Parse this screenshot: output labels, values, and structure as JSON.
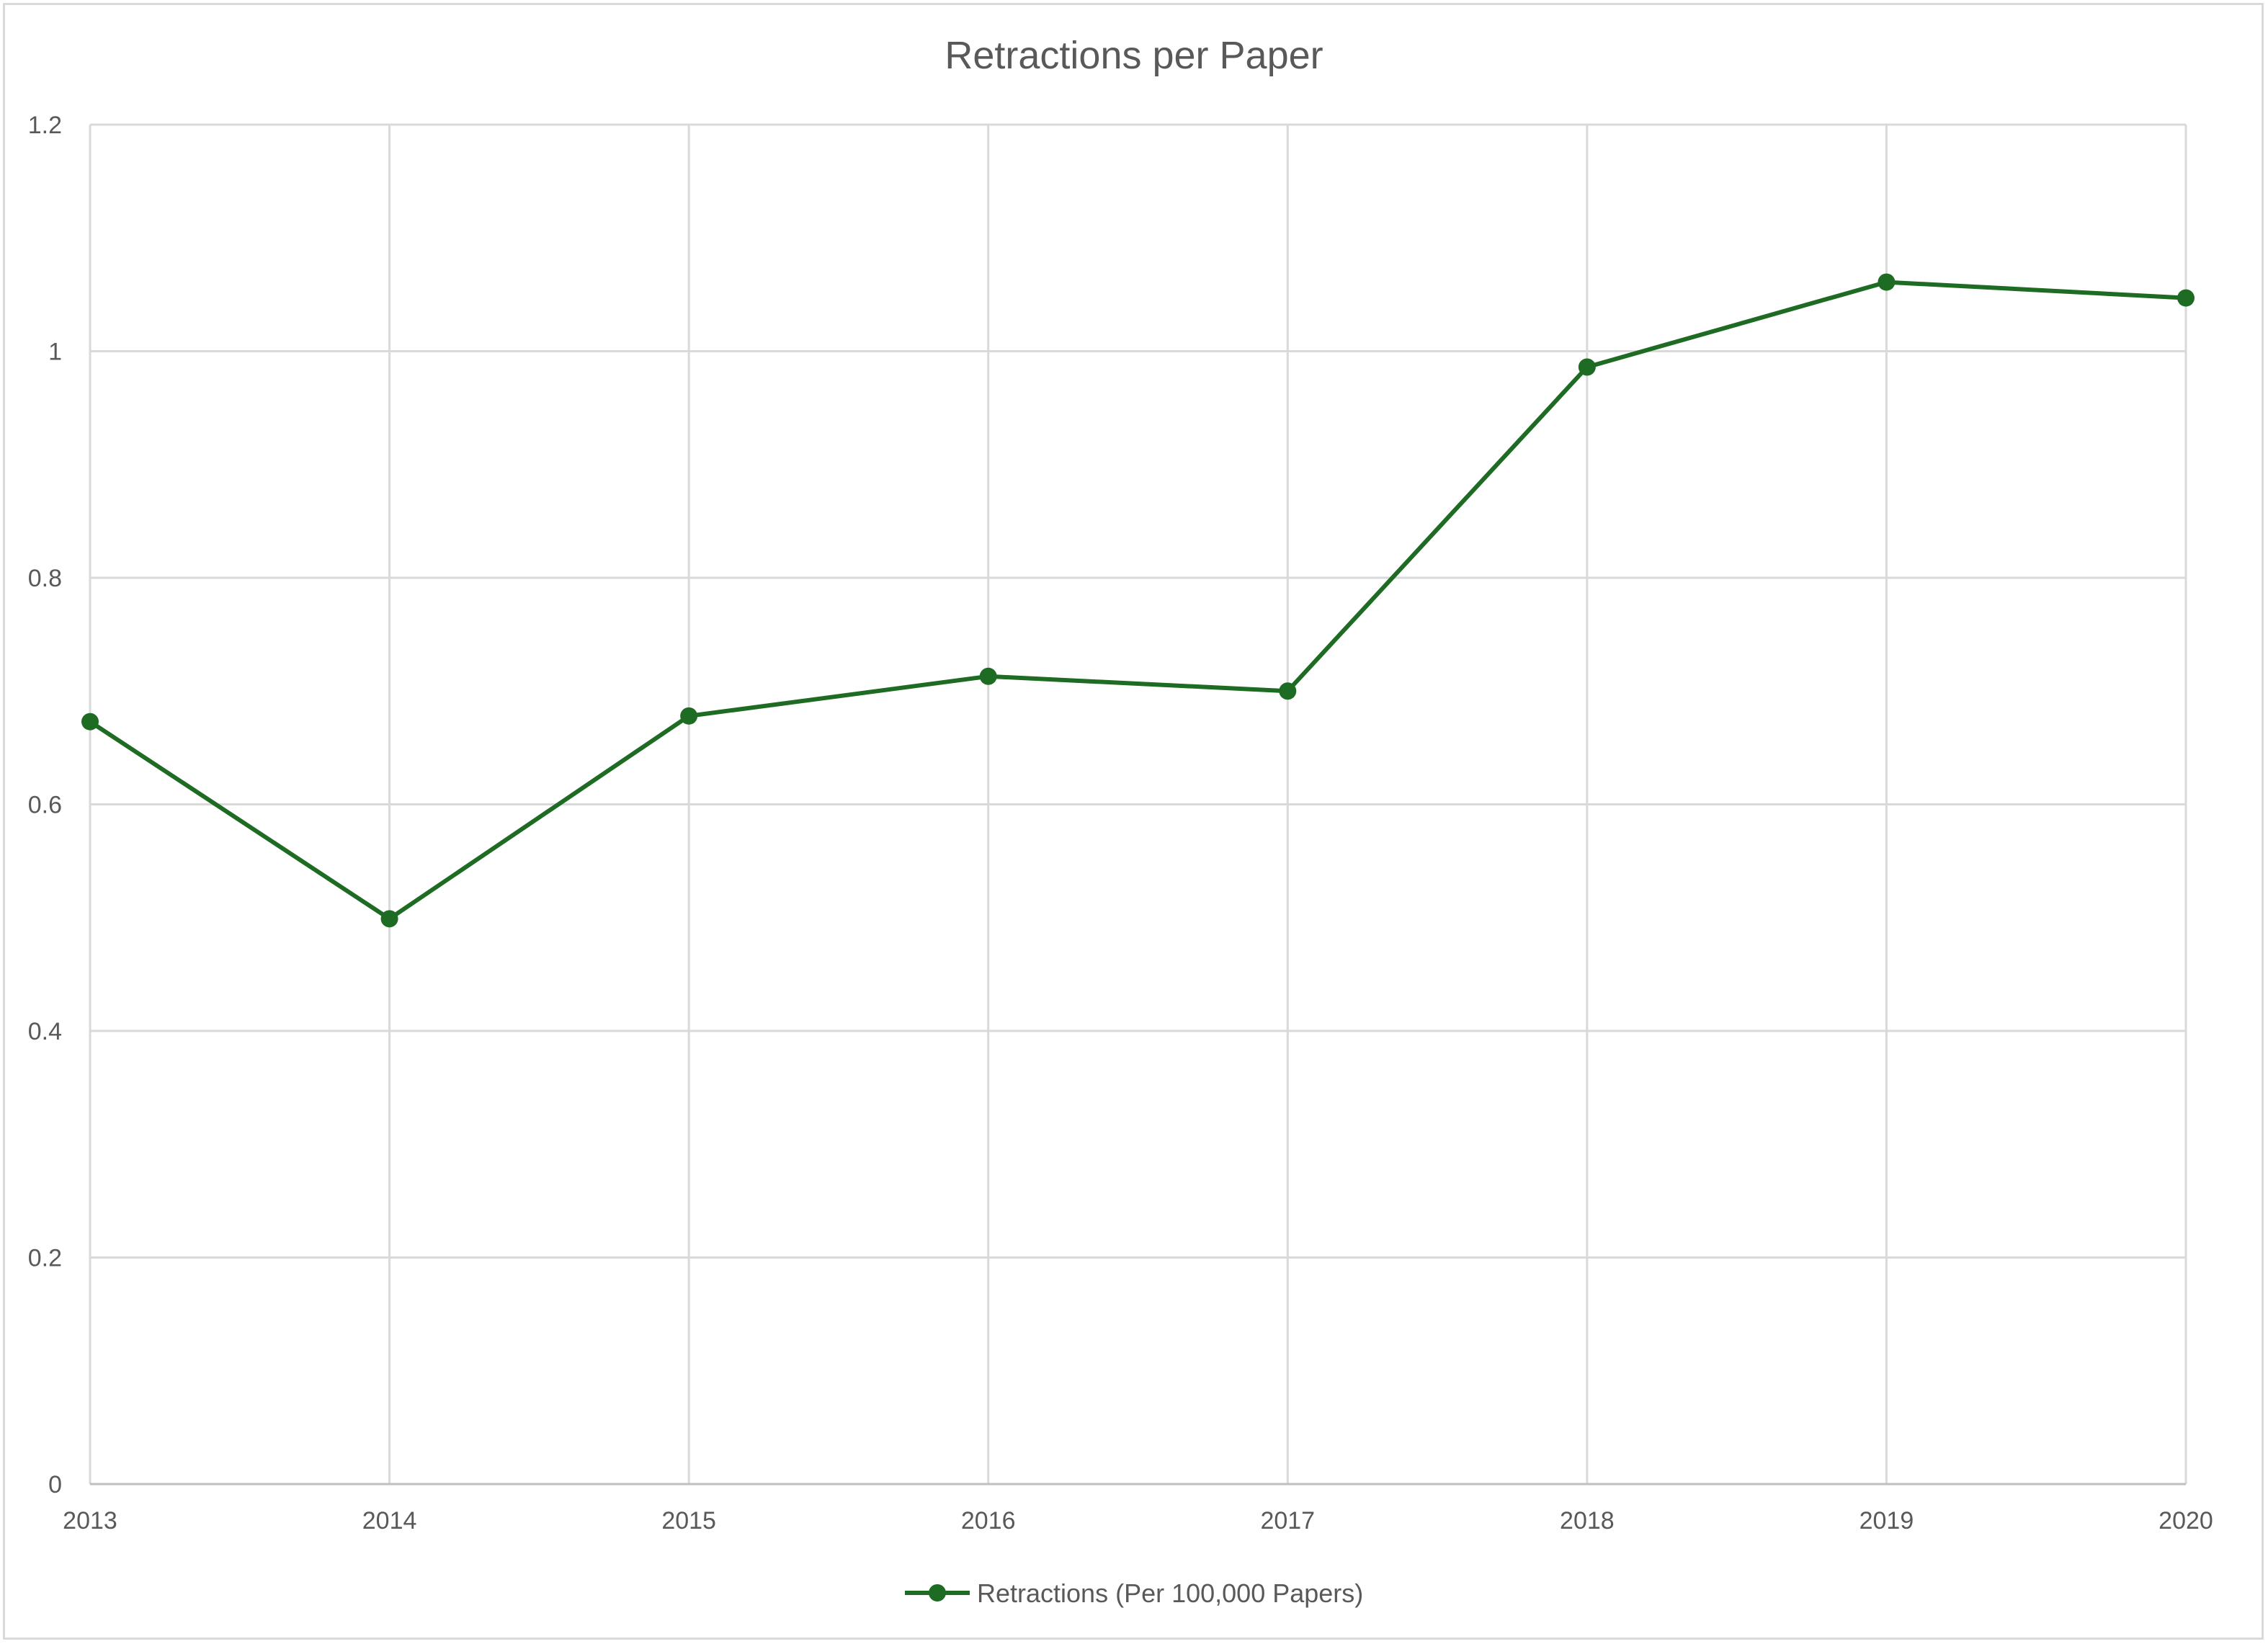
{
  "chart_data": {
    "type": "line",
    "title": "Retractions per Paper",
    "xlabel": "",
    "ylabel": "",
    "categories": [
      "2013",
      "2014",
      "2015",
      "2016",
      "2017",
      "2018",
      "2019",
      "2020"
    ],
    "series": [
      {
        "name": "Retractions (Per 100,000 Papers)",
        "values": [
          0.673,
          0.499,
          0.678,
          0.713,
          0.7,
          0.986,
          1.061,
          1.047
        ],
        "color": "#1e6b23"
      }
    ],
    "ylim": [
      0,
      1.2
    ],
    "yticks": [
      "0",
      "0.2",
      "0.4",
      "0.6",
      "0.8",
      "1",
      "1.2"
    ],
    "grid": true,
    "legend_position": "bottom"
  }
}
